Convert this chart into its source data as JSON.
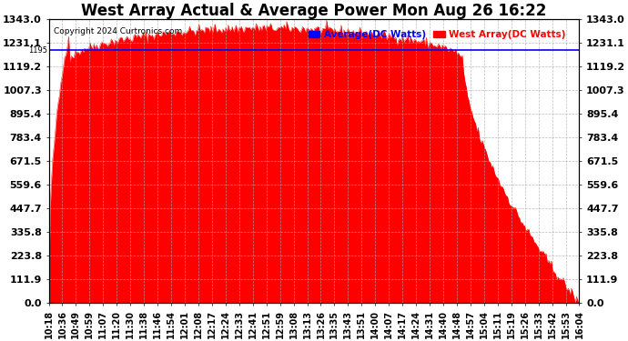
{
  "title": "West Array Actual & Average Power Mon Aug 26 16:22",
  "copyright": "Copyright 2024 Curtronics.com",
  "legend_avg": "Average(DC Watts)",
  "legend_west": "West Array(DC Watts)",
  "ymax": 1343.0,
  "ymin": 0.0,
  "yticks": [
    1343.0,
    1231.1,
    1119.2,
    1007.3,
    895.4,
    783.4,
    671.5,
    559.6,
    447.7,
    335.8,
    223.8,
    111.9,
    0.0
  ],
  "avg_line_y": 1194.92,
  "bar_color": "#ff0000",
  "avg_line_color": "#0000ff",
  "background_color": "#ffffff",
  "plot_bg_color": "#ffffff",
  "grid_color": "#aaaaaa",
  "title_fontsize": 12,
  "xlabel_fontsize": 7,
  "ylabel_fontsize": 8,
  "xtick_labels": [
    "10:18",
    "10:36",
    "10:49",
    "10:59",
    "11:07",
    "11:20",
    "11:30",
    "11:38",
    "11:46",
    "11:54",
    "12:01",
    "12:08",
    "12:17",
    "12:24",
    "12:33",
    "12:41",
    "12:51",
    "12:59",
    "13:08",
    "13:13",
    "13:26",
    "13:35",
    "13:43",
    "13:51",
    "14:00",
    "14:07",
    "14:17",
    "14:24",
    "14:31",
    "14:40",
    "14:48",
    "14:57",
    "15:04",
    "15:11",
    "15:19",
    "15:26",
    "15:33",
    "15:42",
    "15:53",
    "16:04"
  ]
}
